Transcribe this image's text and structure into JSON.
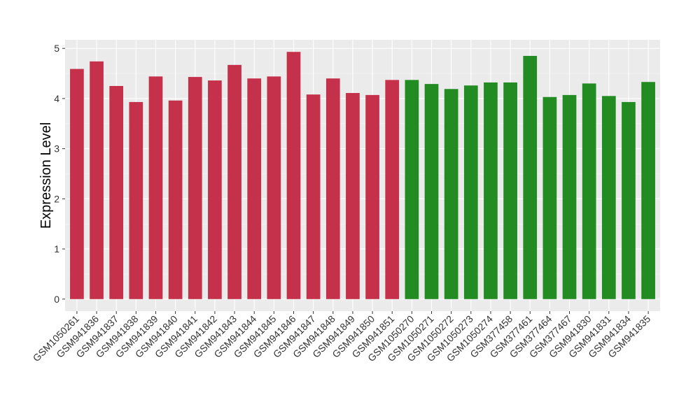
{
  "chart_data": {
    "type": "bar",
    "title": "",
    "xlabel": "",
    "ylabel": "Expression Level",
    "ylim": [
      -0.24,
      5.17
    ],
    "yticks": [
      0,
      1,
      2,
      3,
      4,
      5
    ],
    "grid": true,
    "legend": "none",
    "colors": {
      "group1": "#C5314A",
      "group2": "#228B22"
    },
    "categories": [
      "GSM1050261",
      "GSM941836",
      "GSM941837",
      "GSM941838",
      "GSM941839",
      "GSM941840",
      "GSM941841",
      "GSM941842",
      "GSM941843",
      "GSM941844",
      "GSM941845",
      "GSM941846",
      "GSM941847",
      "GSM941848",
      "GSM941849",
      "GSM941850",
      "GSM941851",
      "GSM1050270",
      "GSM1050271",
      "GSM1050272",
      "GSM1050273",
      "GSM1050274",
      "GSM377458",
      "GSM377461",
      "GSM377464",
      "GSM377467",
      "GSM941830",
      "GSM941831",
      "GSM941834",
      "GSM941835"
    ],
    "values": [
      4.59,
      4.74,
      4.25,
      3.93,
      4.44,
      3.96,
      4.43,
      4.36,
      4.67,
      4.4,
      4.44,
      4.93,
      4.08,
      4.4,
      4.11,
      4.07,
      4.37,
      4.37,
      4.29,
      4.19,
      4.26,
      4.32,
      4.32,
      4.85,
      4.03,
      4.07,
      4.3,
      4.05,
      3.93,
      4.33
    ],
    "groups": [
      "group1",
      "group1",
      "group1",
      "group1",
      "group1",
      "group1",
      "group1",
      "group1",
      "group1",
      "group1",
      "group1",
      "group1",
      "group1",
      "group1",
      "group1",
      "group1",
      "group1",
      "group2",
      "group2",
      "group2",
      "group2",
      "group2",
      "group2",
      "group2",
      "group2",
      "group2",
      "group2",
      "group2",
      "group2",
      "group2"
    ]
  }
}
